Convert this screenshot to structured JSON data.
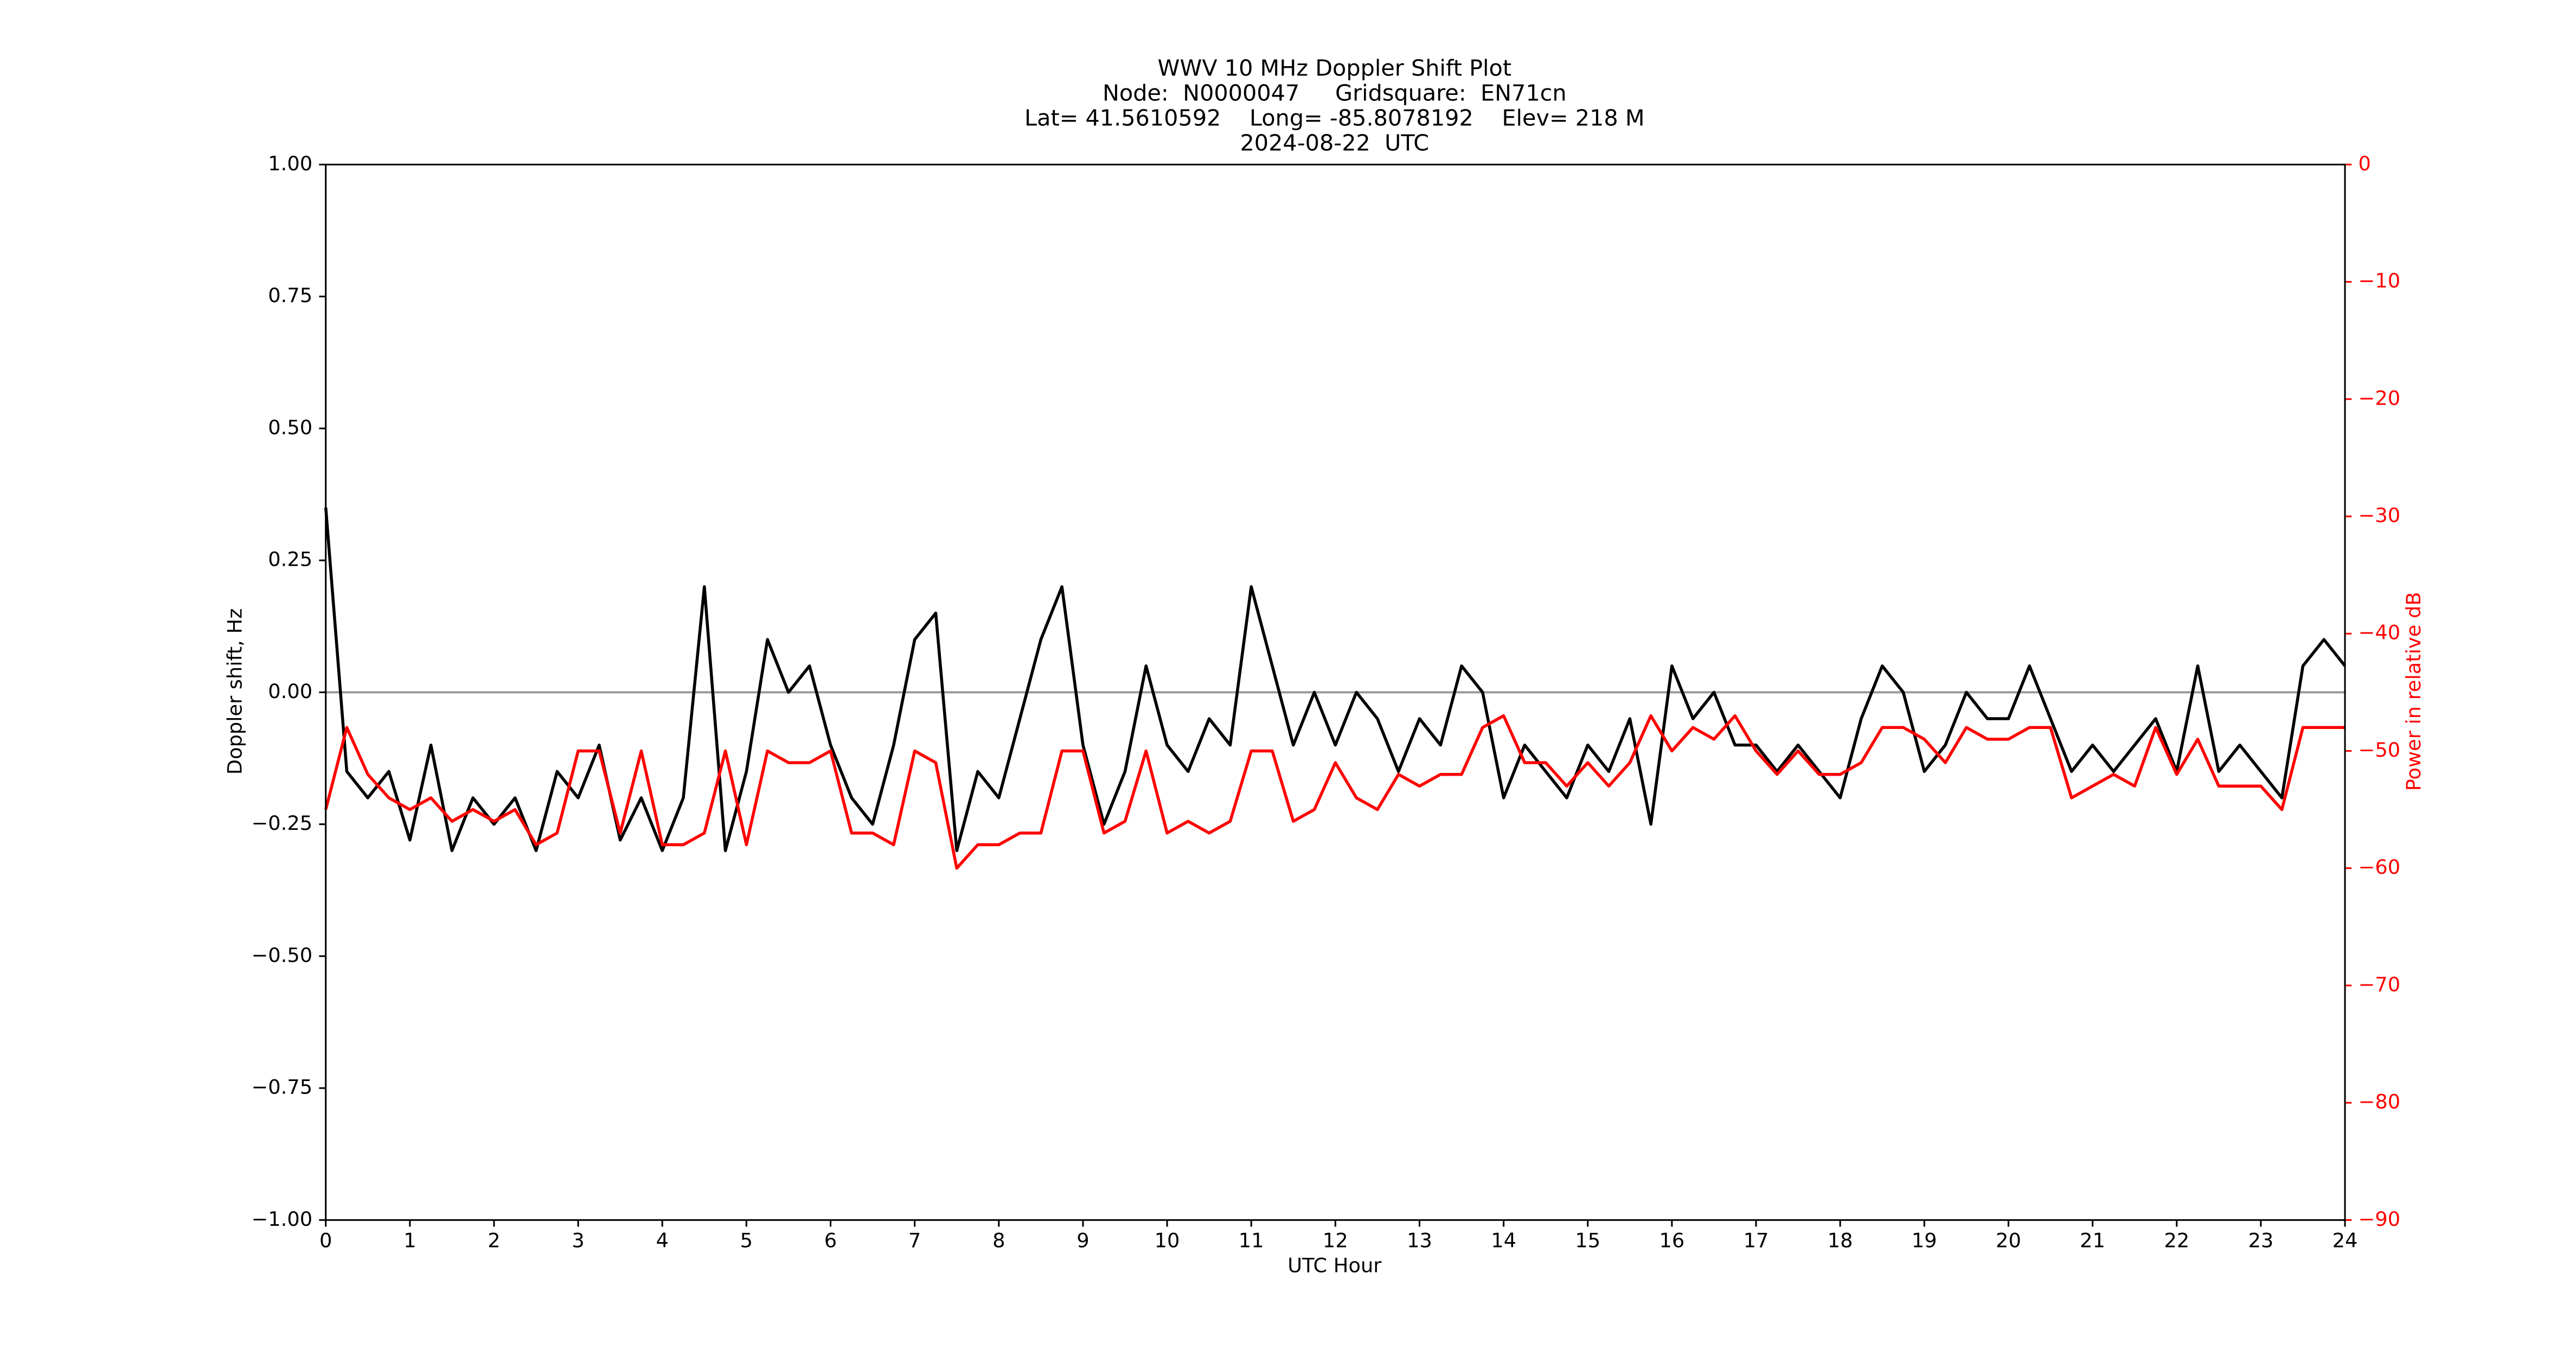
{
  "chart_data": {
    "type": "line",
    "title": [
      "WWV 10 MHz Doppler Shift Plot",
      "Node:  N0000047     Gridsquare:  EN71cn",
      "Lat= 41.5610592    Long= -85.8078192    Elev= 218 M",
      "2024-08-22  UTC"
    ],
    "xlabel": "UTC Hour",
    "ylabel": "Doppler shift, Hz",
    "y2label": "Power in relative dB",
    "xlim": [
      0,
      24
    ],
    "xticks": [
      0,
      1,
      2,
      3,
      4,
      5,
      6,
      7,
      8,
      9,
      10,
      11,
      12,
      13,
      14,
      15,
      16,
      17,
      18,
      19,
      20,
      21,
      22,
      23,
      24
    ],
    "ylim": [
      -1,
      1
    ],
    "yticks": [
      {
        "value": -1,
        "label": "−1.00"
      },
      {
        "value": -0.75,
        "label": "−0.75"
      },
      {
        "value": -0.5,
        "label": "−0.50"
      },
      {
        "value": -0.25,
        "label": "−0.25"
      },
      {
        "value": 0,
        "label": "0.00"
      },
      {
        "value": 0.25,
        "label": "0.25"
      },
      {
        "value": 0.5,
        "label": "0.50"
      },
      {
        "value": 0.75,
        "label": "0.75"
      },
      {
        "value": 1,
        "label": "1.00"
      }
    ],
    "y2lim": [
      -90,
      0
    ],
    "y2ticks": [
      {
        "value": -90,
        "label": "−90"
      },
      {
        "value": -80,
        "label": "−80"
      },
      {
        "value": -70,
        "label": "−70"
      },
      {
        "value": -60,
        "label": "−60"
      },
      {
        "value": -50,
        "label": "−50"
      },
      {
        "value": -40,
        "label": "−40"
      },
      {
        "value": -30,
        "label": "−30"
      },
      {
        "value": -20,
        "label": "−20"
      },
      {
        "value": -10,
        "label": "−10"
      },
      0
    ],
    "hline": 0,
    "hline_color": "#999999",
    "y2_color": "#ff0000",
    "x": [
      0,
      0.25,
      0.5,
      0.75,
      1,
      1.25,
      1.5,
      1.75,
      2,
      2.25,
      2.5,
      2.75,
      3,
      3.25,
      3.5,
      3.75,
      4,
      4.25,
      4.5,
      4.75,
      5,
      5.25,
      5.5,
      5.75,
      6,
      6.25,
      6.5,
      6.75,
      7,
      7.25,
      7.5,
      7.75,
      8,
      8.25,
      8.5,
      8.75,
      9,
      9.25,
      9.5,
      9.75,
      10,
      10.25,
      10.5,
      10.75,
      11,
      11.25,
      11.5,
      11.75,
      12,
      12.25,
      12.5,
      12.75,
      13,
      13.25,
      13.5,
      13.75,
      14,
      14.25,
      14.5,
      14.75,
      15,
      15.25,
      15.5,
      15.75,
      16,
      16.25,
      16.5,
      16.75,
      17,
      17.25,
      17.5,
      17.75,
      18,
      18.25,
      18.5,
      18.75,
      19,
      19.25,
      19.5,
      19.75,
      20,
      20.25,
      20.5,
      20.75,
      21,
      21.25,
      21.5,
      21.75,
      22,
      22.25,
      22.5,
      22.75,
      23,
      23.25,
      23.5,
      23.75,
      24
    ],
    "series": [
      {
        "color": "#000000",
        "values": [
          0.35,
          -0.15,
          -0.2,
          -0.15,
          -0.28,
          -0.1,
          -0.3,
          -0.2,
          -0.25,
          -0.2,
          -0.3,
          -0.15,
          -0.2,
          -0.1,
          -0.28,
          -0.2,
          -0.3,
          -0.2,
          0.2,
          -0.3,
          -0.15,
          0.1,
          0,
          0.05,
          -0.1,
          -0.2,
          -0.25,
          -0.1,
          0.1,
          0.15,
          -0.3,
          -0.15,
          -0.2,
          -0.05,
          0.1,
          0.2,
          -0.1,
          -0.25,
          -0.15,
          0.05,
          -0.1,
          -0.15,
          -0.05,
          -0.1,
          0.2,
          0.05,
          -0.1,
          0,
          -0.1,
          0,
          -0.05,
          -0.15,
          -0.05,
          -0.1,
          0.05,
          0,
          -0.2,
          -0.1,
          -0.15,
          -0.2,
          -0.1,
          -0.15,
          -0.05,
          -0.25,
          0.05,
          -0.05,
          0,
          -0.1,
          -0.1,
          -0.15,
          -0.1,
          -0.15,
          -0.2,
          -0.05,
          0.05,
          0,
          -0.15,
          -0.1,
          0,
          -0.05,
          -0.05,
          0.05,
          -0.05,
          -0.15,
          -0.1,
          -0.15,
          -0.1,
          -0.05,
          -0.15,
          0.05,
          -0.15,
          -0.1,
          -0.15,
          -0.2,
          0.05,
          0.1,
          0.05
        ]
      },
      {
        "color": "#ff0000",
        "axis": "y2",
        "values": [
          -55,
          -48,
          -52,
          -54,
          -55,
          -54,
          -56,
          -55,
          -56,
          -55,
          -58,
          -57,
          -50,
          -50,
          -57,
          -50,
          -58,
          -58,
          -57,
          -50,
          -58,
          -50,
          -51,
          -51,
          -50,
          -57,
          -57,
          -58,
          -50,
          -51,
          -60,
          -58,
          -58,
          -57,
          -57,
          -50,
          -50,
          -57,
          -56,
          -50,
          -57,
          -56,
          -57,
          -56,
          -50,
          -50,
          -56,
          -55,
          -51,
          -54,
          -55,
          -52,
          -53,
          -52,
          -52,
          -48,
          -47,
          -51,
          -51,
          -53,
          -51,
          -53,
          -51,
          -47,
          -50,
          -48,
          -49,
          -47,
          -50,
          -52,
          -50,
          -52,
          -52,
          -51,
          -48,
          -48,
          -49,
          -51,
          -48,
          -49,
          -49,
          -48,
          -48,
          -54,
          -53,
          -52,
          -53,
          -48,
          -52,
          -49,
          -53,
          -53,
          -53,
          -55,
          -48,
          -48,
          -48
        ]
      }
    ]
  }
}
